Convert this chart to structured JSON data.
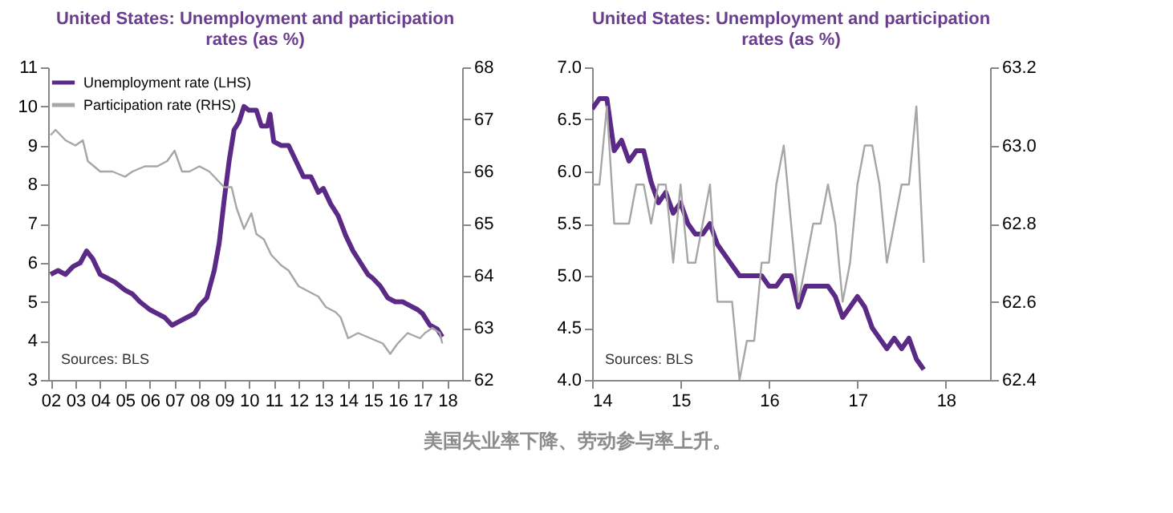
{
  "chart_data": [
    {
      "type": "line",
      "title": "United States: Unemployment and participation rates (as %)",
      "legend": "top left",
      "grid": false,
      "annotations": [
        "Sources: BLS",
        "美国失业率下降、劳动参与率上升。"
      ],
      "xlim": [
        2001.9,
        2018.6
      ],
      "xticks": [
        {
          "value": 2002,
          "label": "02"
        },
        {
          "value": 2003,
          "label": "03"
        },
        {
          "value": 2004,
          "label": "04"
        },
        {
          "value": 2005,
          "label": "05"
        },
        {
          "value": 2006,
          "label": "06"
        },
        {
          "value": 2007,
          "label": "07"
        },
        {
          "value": 2008,
          "label": "08"
        },
        {
          "value": 2009,
          "label": "09"
        },
        {
          "value": 2010,
          "label": "10"
        },
        {
          "value": 2011,
          "label": "11"
        },
        {
          "value": 2012,
          "label": "12"
        },
        {
          "value": 2013,
          "label": "13"
        },
        {
          "value": 2014,
          "label": "14"
        },
        {
          "value": 2015,
          "label": "15"
        },
        {
          "value": 2016,
          "label": "16"
        },
        {
          "value": 2017,
          "label": "17"
        },
        {
          "value": 2018,
          "label": "18"
        }
      ],
      "ylim": [
        3,
        11
      ],
      "yticks": [
        3,
        4,
        5,
        6,
        7,
        8,
        9,
        10,
        11
      ],
      "y2lim": [
        62,
        68
      ],
      "y2ticks": [
        62,
        63,
        64,
        65,
        66,
        67,
        68
      ],
      "series": [
        {
          "name": "Unemployment rate (LHS)",
          "color": "#5b2a86",
          "x": [
            2002.0,
            2002.3,
            2002.6,
            2002.9,
            2003.2,
            2003.45,
            2003.7,
            2004.0,
            2004.3,
            2004.6,
            2005.0,
            2005.3,
            2005.6,
            2006.0,
            2006.3,
            2006.6,
            2006.9,
            2007.2,
            2007.5,
            2007.8,
            2008.0,
            2008.3,
            2008.6,
            2008.8,
            2009.0,
            2009.2,
            2009.4,
            2009.6,
            2009.8,
            2010.0,
            2010.3,
            2010.5,
            2010.75,
            2010.85,
            2011.0,
            2011.3,
            2011.6,
            2011.9,
            2012.2,
            2012.5,
            2012.8,
            2013.0,
            2013.3,
            2013.6,
            2013.9,
            2014.2,
            2014.5,
            2014.8,
            2015.0,
            2015.3,
            2015.6,
            2015.9,
            2016.2,
            2016.5,
            2016.8,
            2017.0,
            2017.3,
            2017.6,
            2017.8
          ],
          "values": [
            5.7,
            5.8,
            5.7,
            5.9,
            6.0,
            6.3,
            6.1,
            5.7,
            5.6,
            5.5,
            5.3,
            5.2,
            5.0,
            4.8,
            4.7,
            4.6,
            4.4,
            4.5,
            4.6,
            4.7,
            4.9,
            5.1,
            5.8,
            6.5,
            7.6,
            8.6,
            9.4,
            9.6,
            10.0,
            9.9,
            9.9,
            9.5,
            9.5,
            9.8,
            9.1,
            9.0,
            9.0,
            8.6,
            8.2,
            8.2,
            7.8,
            7.9,
            7.5,
            7.2,
            6.7,
            6.3,
            6.0,
            5.7,
            5.6,
            5.4,
            5.1,
            5.0,
            5.0,
            4.9,
            4.8,
            4.7,
            4.4,
            4.3,
            4.1
          ]
        },
        {
          "name": "Participation rate (RHS)",
          "color": "#a6a6a6",
          "axis": "y2",
          "x": [
            2002.0,
            2002.2,
            2002.6,
            2003.0,
            2003.3,
            2003.5,
            2004.0,
            2004.5,
            2005.0,
            2005.3,
            2005.8,
            2006.3,
            2006.7,
            2007.0,
            2007.3,
            2007.6,
            2008.0,
            2008.4,
            2008.8,
            2009.0,
            2009.3,
            2009.5,
            2009.8,
            2010.1,
            2010.3,
            2010.6,
            2010.9,
            2011.3,
            2011.6,
            2012.0,
            2012.4,
            2012.8,
            2013.1,
            2013.5,
            2013.7,
            2014.0,
            2014.4,
            2014.9,
            2015.4,
            2015.7,
            2016.0,
            2016.4,
            2016.9,
            2017.1,
            2017.4,
            2017.7,
            2017.8
          ],
          "values": [
            66.7,
            66.8,
            66.6,
            66.5,
            66.6,
            66.2,
            66.0,
            66.0,
            65.9,
            66.0,
            66.1,
            66.1,
            66.2,
            66.4,
            66.0,
            66.0,
            66.1,
            66.0,
            65.8,
            65.7,
            65.7,
            65.3,
            64.9,
            65.2,
            64.8,
            64.7,
            64.4,
            64.2,
            64.1,
            63.8,
            63.7,
            63.6,
            63.4,
            63.3,
            63.2,
            62.8,
            62.9,
            62.8,
            62.7,
            62.5,
            62.7,
            62.9,
            62.8,
            62.9,
            63.0,
            62.9,
            62.7
          ]
        }
      ]
    },
    {
      "type": "line",
      "title": "United States: Unemployment and participation rates (as %)",
      "legend": "top left",
      "grid": false,
      "annotations": [
        "Sources: BLS"
      ],
      "xlim": [
        2014,
        2018.5
      ],
      "xticks": [
        {
          "value": 2014,
          "label": "14"
        },
        {
          "value": 2015,
          "label": "15"
        },
        {
          "value": 2016,
          "label": "16"
        },
        {
          "value": 2017,
          "label": "17"
        },
        {
          "value": 2018,
          "label": "18"
        }
      ],
      "ylim": [
        4,
        7
      ],
      "yticks": [
        {
          "value": 4,
          "label": "4.0"
        },
        4.5,
        {
          "value": 5,
          "label": "5.0"
        },
        5.5,
        {
          "value": 6,
          "label": "6.0"
        },
        6.5,
        {
          "value": 7,
          "label": "7.0"
        }
      ],
      "y2lim": [
        62.4,
        63.2
      ],
      "y2ticks": [
        62.4,
        62.6,
        62.8,
        {
          "value": 63,
          "label": "63.0"
        },
        63.2
      ],
      "series": [
        {
          "name": "Unemployment rate (LHS)",
          "color": "#5b2a86",
          "x": [
            2014.0,
            2014.083,
            2014.167,
            2014.25,
            2014.333,
            2014.417,
            2014.5,
            2014.583,
            2014.667,
            2014.75,
            2014.833,
            2014.917,
            2015.0,
            2015.083,
            2015.167,
            2015.25,
            2015.333,
            2015.417,
            2015.5,
            2015.583,
            2015.667,
            2015.75,
            2015.833,
            2015.917,
            2016.0,
            2016.083,
            2016.167,
            2016.25,
            2016.333,
            2016.417,
            2016.5,
            2016.583,
            2016.667,
            2016.75,
            2016.833,
            2016.917,
            2017.0,
            2017.083,
            2017.167,
            2017.25,
            2017.333,
            2017.417,
            2017.5,
            2017.583,
            2017.667,
            2017.75
          ],
          "values": [
            6.6,
            6.7,
            6.7,
            6.2,
            6.3,
            6.1,
            6.2,
            6.2,
            5.9,
            5.7,
            5.8,
            5.6,
            5.7,
            5.5,
            5.4,
            5.4,
            5.5,
            5.3,
            5.2,
            5.1,
            5.0,
            5.0,
            5.0,
            5.0,
            4.9,
            4.9,
            5.0,
            5.0,
            4.7,
            4.9,
            4.9,
            4.9,
            4.9,
            4.8,
            4.6,
            4.7,
            4.8,
            4.7,
            4.5,
            4.4,
            4.3,
            4.4,
            4.3,
            4.4,
            4.2,
            4.1
          ]
        },
        {
          "name": "Participation rate (RHS)",
          "color": "#a6a6a6",
          "axis": "y2",
          "x": [
            2014.0,
            2014.083,
            2014.167,
            2014.25,
            2014.333,
            2014.417,
            2014.5,
            2014.583,
            2014.667,
            2014.75,
            2014.833,
            2014.917,
            2015.0,
            2015.083,
            2015.167,
            2015.25,
            2015.333,
            2015.417,
            2015.5,
            2015.583,
            2015.667,
            2015.75,
            2015.833,
            2015.917,
            2016.0,
            2016.083,
            2016.167,
            2016.25,
            2016.333,
            2016.417,
            2016.5,
            2016.583,
            2016.667,
            2016.75,
            2016.833,
            2016.917,
            2017.0,
            2017.083,
            2017.167,
            2017.25,
            2017.333,
            2017.417,
            2017.5,
            2017.583,
            2017.667,
            2017.75
          ],
          "values": [
            62.9,
            62.9,
            63.1,
            62.8,
            62.8,
            62.8,
            62.9,
            62.9,
            62.8,
            62.9,
            62.9,
            62.7,
            62.9,
            62.7,
            62.7,
            62.8,
            62.9,
            62.6,
            62.6,
            62.6,
            62.4,
            62.5,
            62.5,
            62.7,
            62.7,
            62.9,
            63.0,
            62.8,
            62.6,
            62.7,
            62.8,
            62.8,
            62.9,
            62.8,
            62.6,
            62.7,
            62.9,
            63.0,
            63.0,
            62.9,
            62.7,
            62.8,
            62.9,
            62.9,
            63.1,
            62.7
          ]
        }
      ]
    }
  ]
}
